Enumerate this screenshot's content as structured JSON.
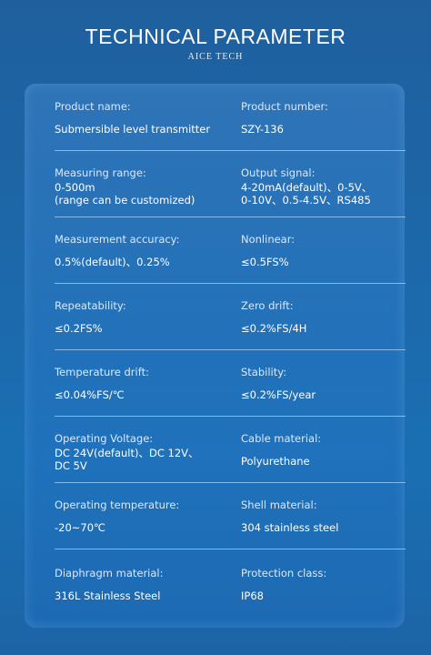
{
  "header": {
    "title": "TECHNICAL PARAMETER",
    "subtitle": "AICE TECH"
  },
  "rows": [
    {
      "left": {
        "label": "Product name:",
        "value": [
          "Submersible level transmitter"
        ]
      },
      "right": {
        "label": "Product number:",
        "value": [
          "SZY-136"
        ]
      }
    },
    {
      "left": {
        "label": "Measuring range:",
        "value": [
          "0-500m",
          "(range can be customized)"
        ]
      },
      "right": {
        "label": "Output signal:",
        "value": [
          "4-20mA(default)、0-5V、",
          "0-10V、0.5-4.5V、RS485"
        ]
      }
    },
    {
      "left": {
        "label": "Measurement accuracy:",
        "value": [
          "0.5%(default)、0.25%"
        ]
      },
      "right": {
        "label": "Nonlinear:",
        "value": [
          "≤0.5FS%"
        ]
      }
    },
    {
      "left": {
        "label": "Repeatability:",
        "value": [
          "≤0.2FS%"
        ]
      },
      "right": {
        "label": "Zero drift:",
        "value": [
          "≤0.2%FS/4H"
        ]
      }
    },
    {
      "left": {
        "label": "Temperature drift:",
        "value": [
          "≤0.04%FS/℃"
        ]
      },
      "right": {
        "label": "Stability:",
        "value": [
          "≤0.2%FS/year"
        ]
      }
    },
    {
      "left": {
        "label": "Operating Voltage:",
        "value": [
          "DC 24V(default)、DC 12V、",
          "DC 5V"
        ]
      },
      "right": {
        "label": "Cable material:",
        "value": [
          "Polyurethane"
        ]
      }
    },
    {
      "left": {
        "label": "Operating temperature:",
        "value": [
          "-20~70℃"
        ]
      },
      "right": {
        "label": "Shell material:",
        "value": [
          "304 stainless steel"
        ]
      }
    },
    {
      "left": {
        "label": "Diaphragm material:",
        "value": [
          "316L Stainless Steel"
        ]
      },
      "right": {
        "label": "Protection class:",
        "value": [
          "IP68"
        ]
      }
    }
  ]
}
